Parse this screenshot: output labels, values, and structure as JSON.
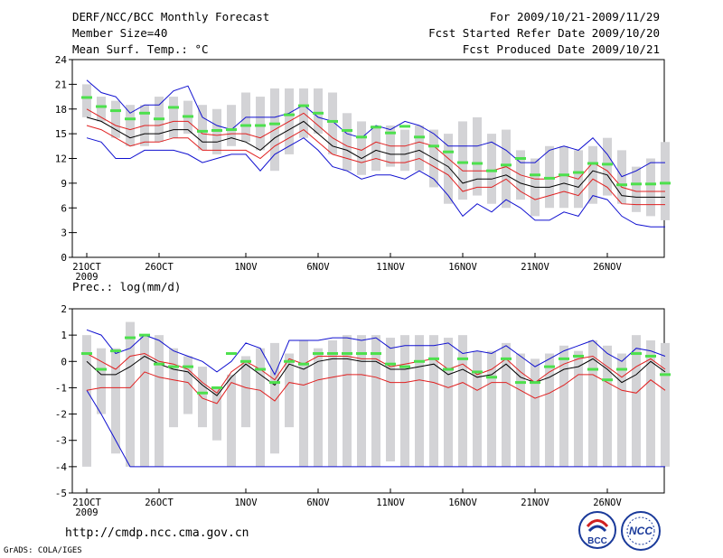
{
  "header": {
    "title": "DERF/NCC/BCC Monthly Forecast",
    "member_size": "Member Size=40",
    "variable": "Mean Surf. Temp.: °C",
    "period": "For 2009/10/21-2009/11/29",
    "started": "Fcst Started Refer Date 2009/10/20",
    "produced": "Fcst Produced Date 2009/10/21"
  },
  "footer": {
    "url": "http://cmdp.ncc.cma.gov.cn",
    "credit": "GrADS: COLA/IGES",
    "logo_bcc": "BCC",
    "logo_ncc": "NCC"
  },
  "colors": {
    "box": "#d3d3d6",
    "mean": "#4de04d",
    "median": "#000000",
    "quartile": "#e02020",
    "extreme": "#1010d0"
  },
  "chart_data": [
    {
      "type": "box",
      "name": "temperature",
      "title": "Mean Surf. Temp.: °C",
      "ylim": [
        0,
        24
      ],
      "yticks": [
        0,
        3,
        6,
        9,
        12,
        15,
        18,
        21,
        24
      ],
      "xticks": [
        {
          "day": 0,
          "label": "21OCT"
        },
        {
          "day": 5,
          "label": "26OCT"
        },
        {
          "day": 11,
          "label": "1NOV"
        },
        {
          "day": 16,
          "label": "6NOV"
        },
        {
          "day": 21,
          "label": "11NOV"
        },
        {
          "day": 26,
          "label": "16NOV"
        },
        {
          "day": 31,
          "label": "21NOV"
        },
        {
          "day": 36,
          "label": "26NOV"
        }
      ],
      "year_label": "2009",
      "box_low": [
        17.0,
        16.5,
        14.5,
        13.5,
        13.5,
        14.0,
        14.5,
        15.0,
        13.0,
        12.5,
        13.5,
        14.0,
        13.0,
        10.5,
        12.5,
        14.5,
        15.0,
        12.5,
        10.5,
        10.0,
        10.5,
        11.0,
        10.5,
        10.5,
        8.5,
        6.5,
        7.0,
        7.5,
        6.5,
        6.0,
        7.0,
        5.0,
        6.0,
        6.0,
        6.0,
        6.5,
        7.5,
        6.5,
        5.5,
        5.0,
        4.5
      ],
      "box_high": [
        21.0,
        19.5,
        19.0,
        18.5,
        18.5,
        19.5,
        19.5,
        19.0,
        18.5,
        18.0,
        18.5,
        20.0,
        19.5,
        20.5,
        20.5,
        20.5,
        20.5,
        20.0,
        17.5,
        16.5,
        16.0,
        16.0,
        15.5,
        16.0,
        15.5,
        15.0,
        16.5,
        17.0,
        15.0,
        15.5,
        13.0,
        12.0,
        13.5,
        13.5,
        13.0,
        13.5,
        14.5,
        13.0,
        11.0,
        12.0,
        14.0
      ],
      "extreme_high": [
        21.5,
        20.0,
        19.5,
        17.5,
        18.5,
        18.5,
        20.2,
        20.8,
        17.0,
        16.0,
        15.5,
        17.0,
        17.0,
        17.0,
        17.5,
        18.5,
        17.0,
        16.5,
        15.0,
        14.5,
        16.0,
        15.5,
        16.5,
        16.0,
        15.0,
        13.5,
        13.5,
        13.5,
        14.0,
        13.0,
        11.5,
        11.5,
        13.0,
        13.5,
        13.0,
        14.5,
        12.5,
        9.8,
        10.5,
        11.5,
        11.5
      ],
      "upper": [
        18.0,
        17.0,
        16.0,
        15.5,
        16.0,
        16.0,
        16.5,
        16.5,
        15.0,
        14.8,
        15.0,
        15.0,
        14.5,
        15.5,
        16.5,
        17.5,
        16.0,
        14.5,
        13.5,
        13.0,
        14.0,
        13.5,
        13.5,
        14.0,
        13.5,
        12.0,
        10.5,
        10.5,
        10.5,
        11.0,
        10.0,
        9.5,
        9.5,
        10.0,
        9.5,
        11.5,
        10.5,
        8.5,
        8.0,
        8.0,
        8.0
      ],
      "median": [
        17.0,
        16.5,
        15.5,
        14.5,
        15.0,
        15.0,
        15.5,
        15.5,
        14.0,
        14.0,
        14.5,
        14.0,
        13.0,
        14.5,
        15.5,
        16.5,
        15.0,
        13.5,
        13.0,
        12.0,
        13.0,
        12.5,
        12.5,
        13.0,
        12.0,
        11.0,
        9.0,
        9.5,
        9.5,
        10.0,
        9.0,
        8.5,
        8.5,
        9.0,
        8.5,
        10.5,
        10.0,
        7.5,
        7.3,
        7.3,
        7.3
      ],
      "lower": [
        16.0,
        15.5,
        14.5,
        13.5,
        14.0,
        14.0,
        14.5,
        14.5,
        13.0,
        13.0,
        13.0,
        13.0,
        12.0,
        13.5,
        14.5,
        15.5,
        14.0,
        12.5,
        12.0,
        11.5,
        12.0,
        11.5,
        11.5,
        12.0,
        11.0,
        10.0,
        8.0,
        8.5,
        8.5,
        9.5,
        8.0,
        7.0,
        7.5,
        8.0,
        7.5,
        9.5,
        8.5,
        6.5,
        6.4,
        6.4,
        6.4
      ],
      "extreme_low": [
        14.5,
        14.0,
        12.0,
        12.0,
        13.0,
        13.0,
        13.0,
        12.5,
        11.5,
        12.0,
        12.5,
        12.5,
        10.5,
        12.5,
        13.5,
        14.5,
        13.0,
        11.0,
        10.5,
        9.5,
        10.0,
        10.0,
        9.5,
        10.5,
        9.5,
        7.5,
        5.0,
        6.5,
        5.5,
        7.0,
        6.0,
        4.5,
        4.5,
        5.5,
        5.0,
        7.5,
        7.0,
        5.0,
        4.0,
        3.7,
        3.7
      ],
      "mean": [
        19.4,
        18.3,
        17.8,
        16.8,
        17.5,
        16.8,
        18.2,
        17.1,
        15.3,
        15.4,
        15.5,
        16.0,
        16.0,
        16.2,
        17.3,
        18.4,
        17.5,
        16.5,
        15.4,
        14.6,
        15.8,
        15.1,
        15.9,
        14.6,
        13.5,
        12.8,
        11.5,
        11.4,
        10.5,
        11.2,
        12.0,
        10.0,
        9.6,
        10.0,
        10.3,
        11.4,
        11.3,
        8.8,
        8.9,
        8.9,
        9.0
      ]
    },
    {
      "type": "box",
      "name": "precipitation",
      "title": "Prec.: log(mm/d)",
      "ylim": [
        -5,
        2
      ],
      "yticks": [
        -5,
        -4,
        -3,
        -2,
        -1,
        0,
        1,
        2
      ],
      "xticks": [
        {
          "day": 0,
          "label": "21OCT"
        },
        {
          "day": 5,
          "label": "26OCT"
        },
        {
          "day": 11,
          "label": "1NOV"
        },
        {
          "day": 16,
          "label": "6NOV"
        },
        {
          "day": 21,
          "label": "11NOV"
        },
        {
          "day": 26,
          "label": "16NOV"
        },
        {
          "day": 31,
          "label": "21NOV"
        },
        {
          "day": 36,
          "label": "26NOV"
        }
      ],
      "year_label": "2009",
      "box_low": [
        -4.0,
        -2.0,
        -3.5,
        -4.0,
        -4.0,
        -4.0,
        -2.5,
        -2.0,
        -2.5,
        -3.0,
        -4.0,
        -2.5,
        -4.0,
        -3.5,
        -2.5,
        -4.0,
        -4.0,
        -4.0,
        -4.0,
        -4.0,
        -4.0,
        -3.8,
        -4.0,
        -4.0,
        -4.0,
        -4.0,
        -4.0,
        -4.0,
        -4.0,
        -4.0,
        -4.0,
        -4.0,
        -4.0,
        -4.0,
        -4.0,
        -4.0,
        -4.0,
        -4.0,
        -4.0,
        -4.0,
        -4.0
      ],
      "box_high": [
        1.0,
        0.5,
        0.5,
        1.5,
        1.0,
        1.0,
        0.5,
        0.2,
        -0.2,
        -1.0,
        -0.5,
        0.2,
        0.5,
        0.7,
        0.3,
        0.8,
        0.5,
        0.8,
        1.0,
        1.0,
        1.0,
        0.9,
        1.0,
        1.0,
        1.0,
        0.9,
        1.0,
        0.4,
        0.4,
        0.7,
        0.3,
        0.1,
        0.3,
        0.6,
        0.4,
        0.8,
        0.6,
        0.3,
        1.0,
        0.8,
        0.7
      ],
      "extreme_high": [
        1.2,
        1.0,
        0.3,
        0.5,
        1.0,
        0.8,
        0.4,
        0.2,
        0.0,
        -0.4,
        0.0,
        0.7,
        0.5,
        -0.5,
        0.8,
        0.8,
        0.8,
        0.9,
        0.9,
        0.8,
        0.9,
        0.5,
        0.6,
        0.6,
        0.6,
        0.7,
        0.3,
        0.4,
        0.3,
        0.6,
        0.2,
        -0.2,
        0.1,
        0.4,
        0.6,
        0.8,
        0.3,
        0.0,
        0.5,
        0.4,
        0.2
      ],
      "upper": [
        0.3,
        0.0,
        -0.3,
        0.2,
        0.3,
        0.0,
        -0.1,
        -0.3,
        -0.8,
        -1.2,
        -0.4,
        0.0,
        -0.3,
        -0.7,
        0.1,
        -0.1,
        0.2,
        0.2,
        0.2,
        0.1,
        0.1,
        -0.2,
        -0.1,
        0.0,
        0.1,
        -0.3,
        -0.1,
        -0.5,
        -0.3,
        0.1,
        -0.4,
        -0.8,
        -0.4,
        -0.1,
        0.1,
        0.2,
        -0.2,
        -0.6,
        -0.2,
        0.1,
        -0.3
      ],
      "median": [
        0.0,
        -0.5,
        -0.5,
        -0.2,
        0.2,
        -0.1,
        -0.3,
        -0.4,
        -0.9,
        -1.3,
        -0.6,
        -0.1,
        -0.5,
        -0.9,
        -0.1,
        -0.3,
        0.0,
        0.1,
        0.1,
        0.0,
        0.0,
        -0.3,
        -0.3,
        -0.2,
        -0.1,
        -0.5,
        -0.3,
        -0.6,
        -0.5,
        -0.1,
        -0.6,
        -0.8,
        -0.6,
        -0.3,
        -0.2,
        0.1,
        -0.3,
        -0.8,
        -0.5,
        0.0,
        -0.4
      ],
      "lower": [
        -1.1,
        -1.0,
        -1.0,
        -1.0,
        -0.4,
        -0.6,
        -0.7,
        -0.8,
        -1.4,
        -1.6,
        -0.8,
        -1.0,
        -1.1,
        -1.5,
        -0.8,
        -0.9,
        -0.7,
        -0.6,
        -0.5,
        -0.5,
        -0.6,
        -0.8,
        -0.8,
        -0.7,
        -0.8,
        -1.0,
        -0.8,
        -1.1,
        -0.8,
        -0.8,
        -1.1,
        -1.4,
        -1.2,
        -0.9,
        -0.5,
        -0.5,
        -0.8,
        -1.1,
        -1.2,
        -0.7,
        -1.1
      ],
      "extreme_low": [
        -1.1,
        -2.0,
        -3.0,
        -4.0,
        -4.0,
        -4.0,
        -4.0,
        -4.0,
        -4.0,
        -4.0,
        -4.0,
        -4.0,
        -4.0,
        -4.0,
        -4.0,
        -4.0,
        -4.0,
        -4.0,
        -4.0,
        -4.0,
        -4.0,
        -4.0,
        -4.0,
        -4.0,
        -4.0,
        -4.0,
        -4.0,
        -4.0,
        -4.0,
        -4.0,
        -4.0,
        -4.0,
        -4.0,
        -4.0,
        -4.0,
        -4.0,
        -4.0,
        -4.0,
        -4.0,
        -4.0,
        -4.0
      ],
      "mean": [
        0.3,
        -0.3,
        0.4,
        0.9,
        1.0,
        -0.1,
        -0.2,
        -0.2,
        -1.2,
        -1.0,
        0.3,
        0.0,
        -0.3,
        -0.8,
        0.0,
        -0.1,
        0.3,
        0.3,
        0.3,
        0.3,
        0.3,
        -0.1,
        -0.2,
        0.0,
        0.1,
        -0.3,
        0.1,
        -0.4,
        -0.6,
        0.1,
        -0.8,
        -0.8,
        -0.2,
        0.1,
        0.2,
        -0.3,
        -0.7,
        -0.3,
        0.3,
        0.2,
        -0.5
      ]
    }
  ]
}
